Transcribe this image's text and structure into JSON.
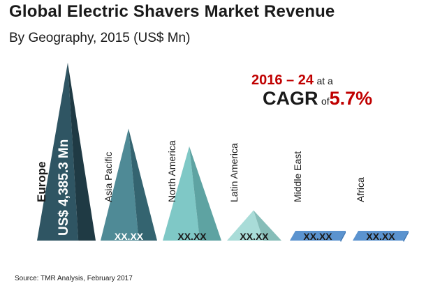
{
  "colors": {
    "dark": "#2f5563",
    "dark_shadow": "#1f3a44",
    "mid": "#4f8a96",
    "mid_shadow": "#346470",
    "light": "#7fc8c6",
    "light_shadow": "#5ea3a2",
    "pale": "#a9dcd8",
    "pale_shadow": "#86bdb8",
    "flat": "#5b93cf",
    "flat_shadow": "#3f78b6",
    "accent": "#c00000"
  },
  "chart_data": {
    "type": "bar",
    "title": "Global Electric Shavers Market Revenue",
    "subtitle": "By Geography, 2015 (US$ Mn)",
    "categories": [
      "Europe",
      "Asia Pacific",
      "North America",
      "Latin America",
      "Middle East",
      "Africa"
    ],
    "values": [
      4385.3,
      null,
      null,
      null,
      null,
      null
    ],
    "value_labels": [
      "US$ 4,385.3 Mn",
      "XX.XX",
      "XX.XX",
      "XX.XX",
      "XX.XX",
      "XX.XX"
    ],
    "relative_heights": [
      1.0,
      0.63,
      0.53,
      0.17,
      0.0,
      0.0
    ],
    "annotation": {
      "period": "2016 – 24",
      "at_a": "at a",
      "cagr_word": "CAGR",
      "of_word": "of",
      "cagr_value": "5.7%"
    },
    "source": "Source: TMR Analysis, February 2017"
  }
}
